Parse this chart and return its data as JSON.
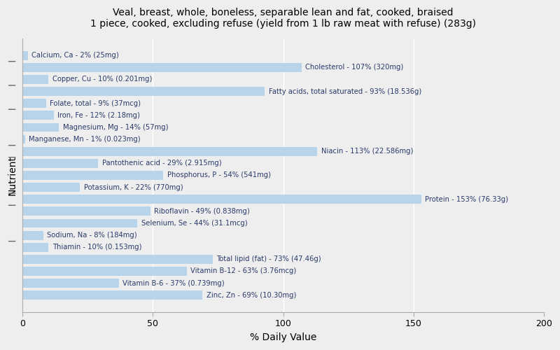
{
  "title": "Veal, breast, whole, boneless, separable lean and fat, cooked, braised\n1 piece, cooked, excluding refuse (yield from 1 lb raw meat with refuse) (283g)",
  "xlabel": "% Daily Value",
  "ylabel": "Nutrient",
  "xlim": [
    0,
    200
  ],
  "xticks": [
    0,
    50,
    100,
    150,
    200
  ],
  "background_color": "#eeeeee",
  "bar_color": "#b8d4ea",
  "text_color": "#2a3a6a",
  "nutrients": [
    {
      "label": "Calcium, Ca - 2% (25mg)",
      "value": 2
    },
    {
      "label": "Cholesterol - 107% (320mg)",
      "value": 107
    },
    {
      "label": "Copper, Cu - 10% (0.201mg)",
      "value": 10
    },
    {
      "label": "Fatty acids, total saturated - 93% (18.536g)",
      "value": 93
    },
    {
      "label": "Folate, total - 9% (37mcg)",
      "value": 9
    },
    {
      "label": "Iron, Fe - 12% (2.18mg)",
      "value": 12
    },
    {
      "label": "Magnesium, Mg - 14% (57mg)",
      "value": 14
    },
    {
      "label": "Manganese, Mn - 1% (0.023mg)",
      "value": 1
    },
    {
      "label": "Niacin - 113% (22.586mg)",
      "value": 113
    },
    {
      "label": "Pantothenic acid - 29% (2.915mg)",
      "value": 29
    },
    {
      "label": "Phosphorus, P - 54% (541mg)",
      "value": 54
    },
    {
      "label": "Potassium, K - 22% (770mg)",
      "value": 22
    },
    {
      "label": "Protein - 153% (76.33g)",
      "value": 153
    },
    {
      "label": "Riboflavin - 49% (0.838mg)",
      "value": 49
    },
    {
      "label": "Selenium, Se - 44% (31.1mcg)",
      "value": 44
    },
    {
      "label": "Sodium, Na - 8% (184mg)",
      "value": 8
    },
    {
      "label": "Thiamin - 10% (0.153mg)",
      "value": 10
    },
    {
      "label": "Total lipid (fat) - 73% (47.46g)",
      "value": 73
    },
    {
      "label": "Vitamin B-12 - 63% (3.76mcg)",
      "value": 63
    },
    {
      "label": "Vitamin B-6 - 37% (0.739mg)",
      "value": 37
    },
    {
      "label": "Zinc, Zn - 69% (10.30mg)",
      "value": 69
    }
  ],
  "group_ticks_at": [
    1.5,
    3.5,
    7.5,
    11.5,
    16.5
  ]
}
